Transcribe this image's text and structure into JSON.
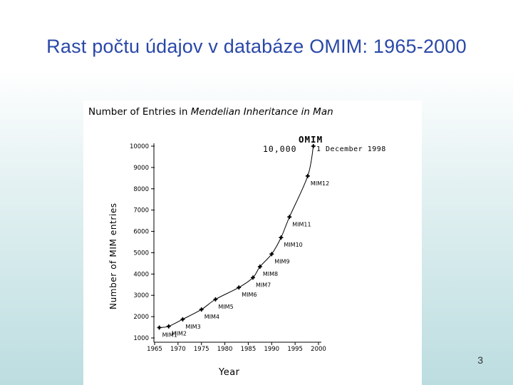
{
  "slide": {
    "title": "Rast počtu údajov v databáze OMIM: 1965-2000",
    "page_number": "3"
  },
  "chart_data": {
    "type": "line",
    "title_prefix": "Number of Entries in ",
    "title_italic": "Mendelian Inheritance in Man",
    "xlabel": "Year",
    "ylabel": "Number of MIM entries",
    "xlim": [
      1965,
      2000
    ],
    "ylim": [
      1000,
      10000
    ],
    "x_ticks": [
      1965,
      1970,
      1975,
      1980,
      1985,
      1990,
      1995,
      2000
    ],
    "y_ticks": [
      1000,
      2000,
      3000,
      4000,
      5000,
      6000,
      7000,
      8000,
      9000,
      10000
    ],
    "grid": false,
    "series": [
      {
        "x": [
          1966,
          1968,
          1971,
          1975,
          1978,
          1983,
          1986,
          1987.5,
          1990,
          1992,
          1993.8,
          1997.7,
          1998.9
        ],
        "y": [
          1487,
          1545,
          1876,
          2336,
          2811,
          3368,
          3831,
          4344,
          4937,
          5710,
          6678,
          8600,
          10000
        ]
      }
    ],
    "point_labels": [
      {
        "text": "MIM1",
        "x": 1966,
        "y": 1487
      },
      {
        "text": "MIM2",
        "x": 1968,
        "y": 1545
      },
      {
        "text": "MIM3",
        "x": 1971,
        "y": 1876
      },
      {
        "text": "MIM4",
        "x": 1975,
        "y": 2336
      },
      {
        "text": "MIM5",
        "x": 1978,
        "y": 2811
      },
      {
        "text": "MIM6",
        "x": 1983,
        "y": 3368
      },
      {
        "text": "MIM7",
        "x": 1986,
        "y": 3831
      },
      {
        "text": "MIM8",
        "x": 1987.5,
        "y": 4344
      },
      {
        "text": "MIM9",
        "x": 1990,
        "y": 4937
      },
      {
        "text": "MIM10",
        "x": 1992,
        "y": 5710
      },
      {
        "text": "MIM11",
        "x": 1993.8,
        "y": 6678
      },
      {
        "text": "MIM12",
        "x": 1997.7,
        "y": 8600
      }
    ],
    "annotations": {
      "omim": "OMIM",
      "count": "10,000",
      "date": "1 December 1998"
    }
  }
}
